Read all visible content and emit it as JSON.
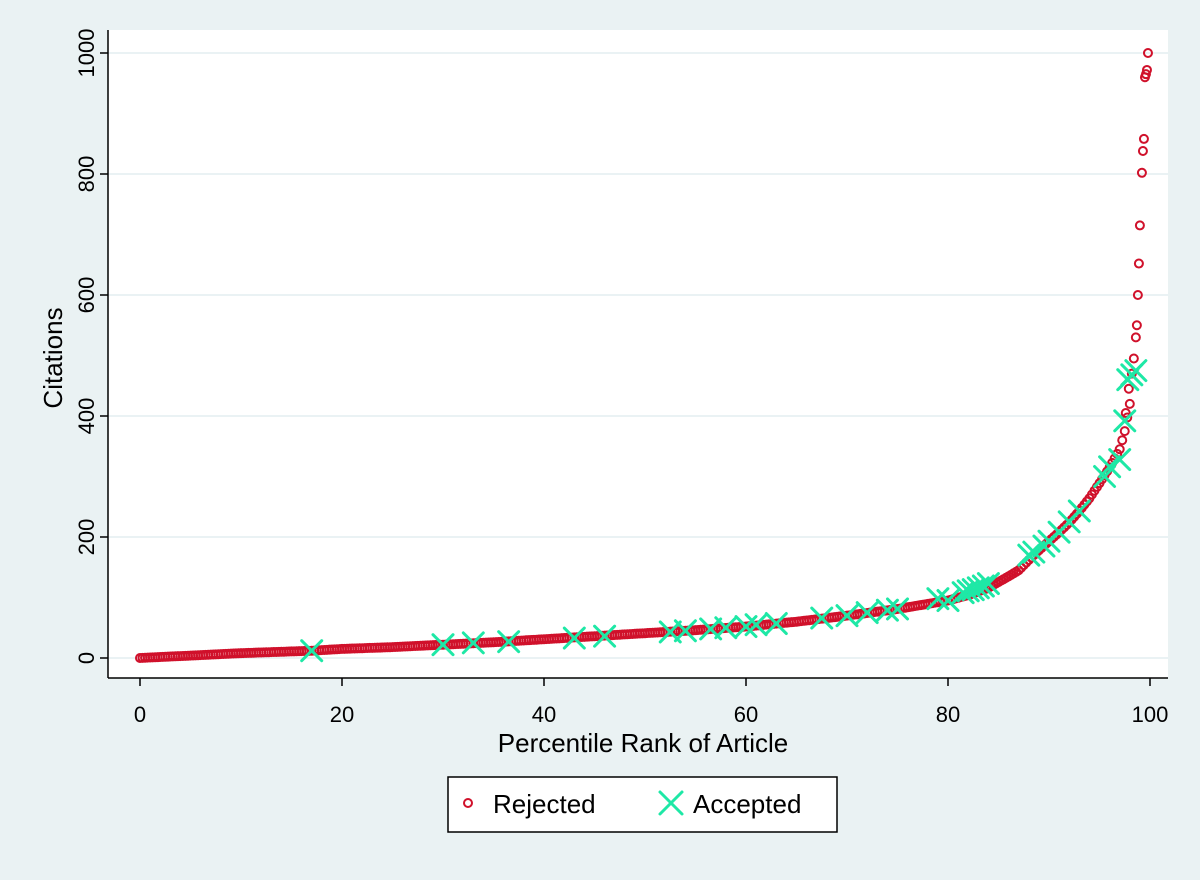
{
  "chart_data": {
    "type": "scatter",
    "title": "",
    "xlabel": "Percentile Rank of Article",
    "ylabel": "Citations",
    "xlim": [
      0,
      100
    ],
    "ylim": [
      0,
      1000
    ],
    "xticks": [
      0,
      20,
      40,
      60,
      80,
      100
    ],
    "yticks": [
      0,
      200,
      400,
      600,
      800,
      1000
    ],
    "grid": "horizontal",
    "legend_position": "bottom-center",
    "series": [
      {
        "name": "Rejected",
        "marker": "circle-hollow",
        "color": "#d0112b",
        "x_start": 0,
        "x_end": 98,
        "x_step": 0.25,
        "curve": [
          [
            0,
            0
          ],
          [
            5,
            4
          ],
          [
            10,
            8
          ],
          [
            17,
            12
          ],
          [
            20,
            15
          ],
          [
            25,
            18
          ],
          [
            30,
            22
          ],
          [
            35,
            26
          ],
          [
            40,
            31
          ],
          [
            45,
            36
          ],
          [
            50,
            41
          ],
          [
            55,
            46
          ],
          [
            60,
            52
          ],
          [
            65,
            60
          ],
          [
            70,
            70
          ],
          [
            75,
            81
          ],
          [
            80,
            95
          ],
          [
            82,
            104
          ],
          [
            84,
            116
          ],
          [
            86,
            135
          ],
          [
            87,
            145
          ],
          [
            88,
            162
          ],
          [
            89,
            178
          ],
          [
            90,
            193
          ],
          [
            91,
            208
          ],
          [
            92,
            224
          ],
          [
            93,
            243
          ],
          [
            94,
            264
          ],
          [
            95,
            289
          ],
          [
            96,
            315
          ],
          [
            97,
            345
          ],
          [
            97.5,
            375
          ],
          [
            98,
            420
          ]
        ],
        "extra_points": [
          [
            97.6,
            405
          ],
          [
            97.9,
            445
          ],
          [
            98.2,
            470
          ],
          [
            98.4,
            495
          ],
          [
            98.6,
            530
          ],
          [
            98.7,
            550
          ],
          [
            98.8,
            600
          ],
          [
            98.9,
            652
          ],
          [
            99.0,
            715
          ],
          [
            99.2,
            802
          ],
          [
            99.3,
            838
          ],
          [
            99.4,
            858
          ],
          [
            99.5,
            960
          ],
          [
            99.6,
            965
          ],
          [
            99.7,
            972
          ],
          [
            99.8,
            1000
          ]
        ]
      },
      {
        "name": "Accepted",
        "marker": "x",
        "color": "#1ee8a6",
        "points": [
          [
            17,
            12
          ],
          [
            30,
            22
          ],
          [
            33,
            25
          ],
          [
            36.5,
            27
          ],
          [
            43,
            33
          ],
          [
            46,
            36
          ],
          [
            52.5,
            43
          ],
          [
            54,
            45
          ],
          [
            56.5,
            48
          ],
          [
            58,
            50
          ],
          [
            60,
            52
          ],
          [
            61,
            55
          ],
          [
            63,
            57
          ],
          [
            67.5,
            66
          ],
          [
            70,
            70
          ],
          [
            72,
            75
          ],
          [
            74,
            79
          ],
          [
            75,
            81
          ],
          [
            79,
            98
          ],
          [
            80,
            95
          ],
          [
            81.5,
            108
          ],
          [
            82,
            111
          ],
          [
            82.5,
            113
          ],
          [
            83,
            116
          ],
          [
            83.5,
            119
          ],
          [
            84,
            123
          ],
          [
            88,
            170
          ],
          [
            88.5,
            175
          ],
          [
            89.5,
            185
          ],
          [
            90,
            193
          ],
          [
            91,
            208
          ],
          [
            92,
            225
          ],
          [
            93,
            243
          ],
          [
            95.5,
            300
          ],
          [
            96,
            316
          ],
          [
            97,
            328
          ],
          [
            97.5,
            392
          ],
          [
            97.8,
            460
          ],
          [
            98.2,
            468
          ],
          [
            98.6,
            475
          ]
        ]
      }
    ]
  }
}
